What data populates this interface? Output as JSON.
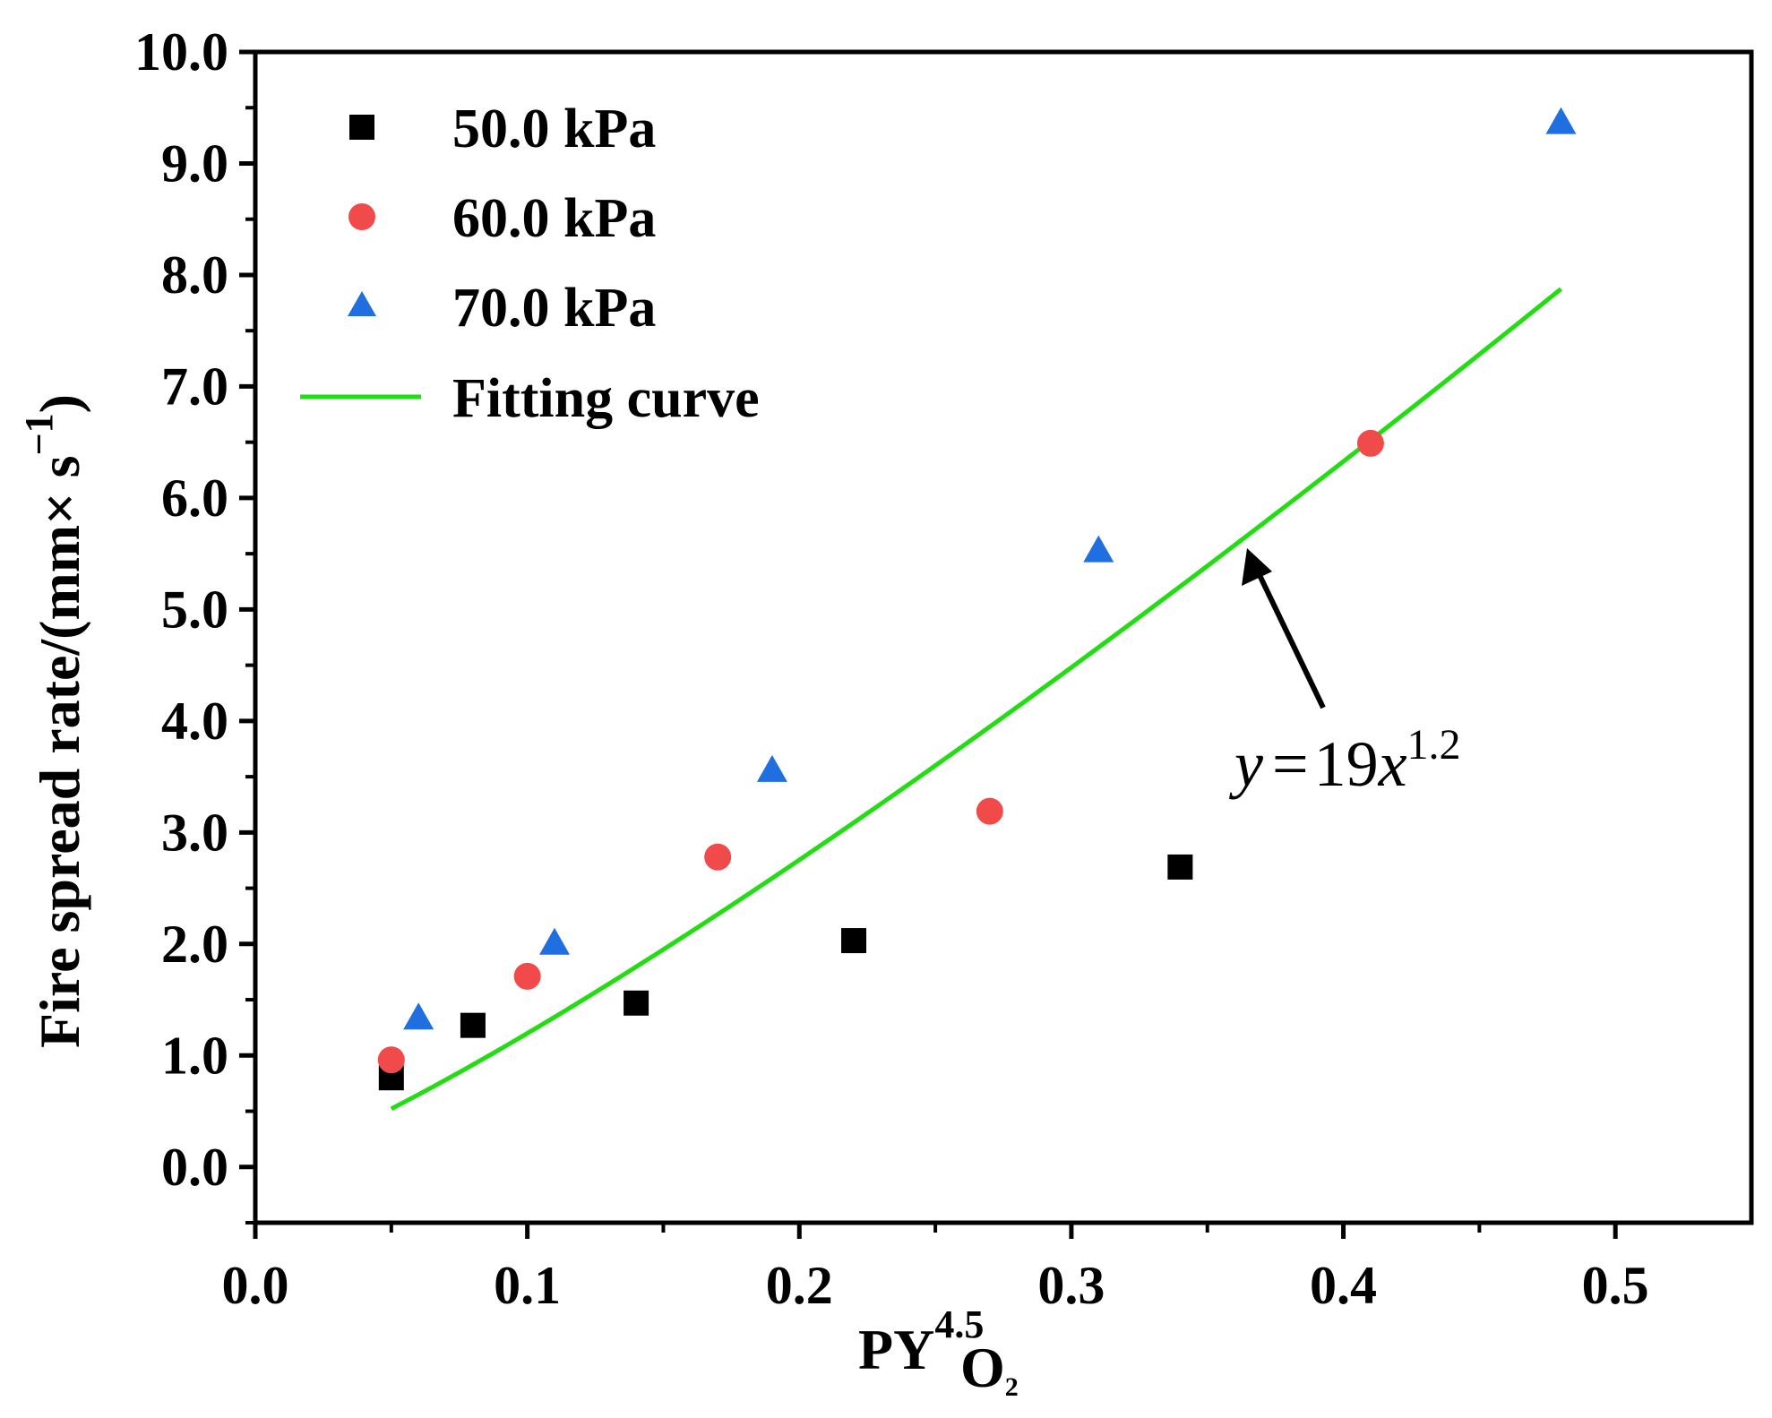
{
  "chart_data": {
    "type": "scatter",
    "title": "",
    "xlabel": "PY",
    "xlabel_superscript": "4.5",
    "xlabel_subscript": "O",
    "xlabel_subscript2": "2",
    "ylabel": "Fire spread rate/(mm× s",
    "ylabel_superscript": "−1",
    "ylabel_close": ")",
    "xlim": [
      0.0,
      0.55
    ],
    "ylim": [
      -0.5,
      10.0
    ],
    "x_ticks": [
      "0.0",
      "0.1",
      "0.2",
      "0.3",
      "0.4",
      "0.5"
    ],
    "x_tick_values": [
      0.0,
      0.1,
      0.2,
      0.3,
      0.4,
      0.5
    ],
    "y_ticks": [
      "0.0",
      "1.0",
      "2.0",
      "3.0",
      "4.0",
      "5.0",
      "6.0",
      "7.0",
      "8.0",
      "9.0",
      "10.0"
    ],
    "y_tick_values": [
      0,
      1,
      2,
      3,
      4,
      5,
      6,
      7,
      8,
      9,
      10
    ],
    "grid": false,
    "legend_position": "top-left",
    "series": [
      {
        "name": "50.0 kPa",
        "marker": "square",
        "color": "#000000",
        "x": [
          0.05,
          0.08,
          0.14,
          0.22,
          0.34
        ],
        "y": [
          0.8,
          1.27,
          1.47,
          2.03,
          2.69
        ]
      },
      {
        "name": "60.0 kPa",
        "marker": "circle",
        "color": "#f04a4a",
        "x": [
          0.05,
          0.1,
          0.17,
          0.27,
          0.41
        ],
        "y": [
          0.96,
          1.71,
          2.78,
          3.19,
          6.49
        ]
      },
      {
        "name": "70.0 kPa",
        "marker": "triangle",
        "color": "#1f6fe0",
        "x": [
          0.06,
          0.11,
          0.19,
          0.31,
          0.48
        ],
        "y": [
          1.33,
          2.0,
          3.55,
          5.52,
          9.36
        ]
      }
    ],
    "fit": {
      "name": "Fitting curve",
      "color": "#22dd11",
      "coefficient": 19,
      "exponent": 1.2,
      "x_range": [
        0.05,
        0.48
      ]
    },
    "annotation": {
      "y_symbol": "y",
      "equals": "=",
      "coef": "19",
      "x_symbol": "x",
      "exponent": "1.2"
    }
  }
}
